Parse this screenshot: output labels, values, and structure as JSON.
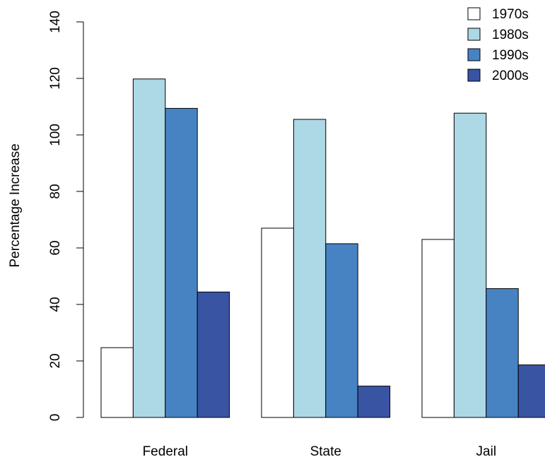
{
  "chart_data": {
    "type": "bar",
    "categories": [
      "Federal",
      "State",
      "Jail"
    ],
    "series": [
      {
        "name": "1970s",
        "color": "#ffffff",
        "values": [
          24.7,
          67.0,
          63.0
        ]
      },
      {
        "name": "1980s",
        "color": "#add8e6",
        "values": [
          119.8,
          105.5,
          107.7
        ]
      },
      {
        "name": "1990s",
        "color": "#4783c3",
        "values": [
          109.4,
          61.5,
          45.6
        ]
      },
      {
        "name": "2000s",
        "color": "#3a54a4",
        "values": [
          44.4,
          11.1,
          18.6
        ]
      }
    ],
    "title": "",
    "xlabel": "",
    "ylabel": "Percentage Increase",
    "ylim": [
      0,
      140
    ],
    "yticks": [
      "0",
      "20",
      "40",
      "60",
      "80",
      "100",
      "120",
      "140"
    ],
    "grid": false,
    "legend_position": "top-right"
  }
}
